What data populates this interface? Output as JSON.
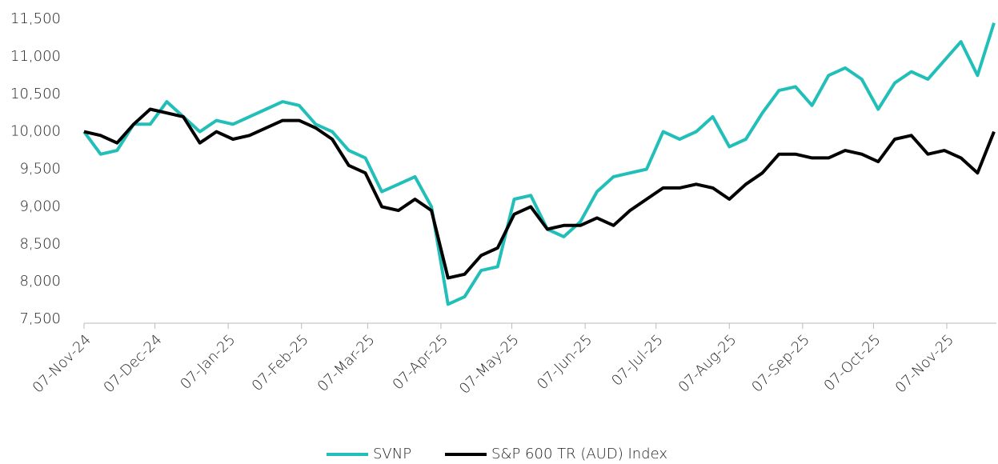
{
  "chart_data": {
    "type": "line",
    "x": [
      "2024-11-07",
      "2024-11-14",
      "2024-11-21",
      "2024-11-28",
      "2024-12-05",
      "2024-12-12",
      "2024-12-19",
      "2024-12-26",
      "2025-01-02",
      "2025-01-09",
      "2025-01-16",
      "2025-01-23",
      "2025-01-30",
      "2025-02-06",
      "2025-02-13",
      "2025-02-20",
      "2025-02-27",
      "2025-03-06",
      "2025-03-13",
      "2025-03-20",
      "2025-03-27",
      "2025-04-03",
      "2025-04-10",
      "2025-04-17",
      "2025-04-24",
      "2025-05-01",
      "2025-05-08",
      "2025-05-15",
      "2025-05-22",
      "2025-05-29",
      "2025-06-05",
      "2025-06-12",
      "2025-06-19",
      "2025-06-26",
      "2025-07-03",
      "2025-07-10",
      "2025-07-17",
      "2025-07-24",
      "2025-07-31",
      "2025-08-07",
      "2025-08-14",
      "2025-08-21",
      "2025-08-28",
      "2025-09-04",
      "2025-09-11",
      "2025-09-18",
      "2025-09-25",
      "2025-10-02",
      "2025-10-09",
      "2025-10-16",
      "2025-10-23",
      "2025-10-30",
      "2025-11-06",
      "2025-11-13",
      "2025-11-20",
      "2025-11-27"
    ],
    "series": [
      {
        "name": "SVNP",
        "color": "#22bfb8",
        "values": [
          10000,
          9700,
          9750,
          10100,
          10100,
          10400,
          10200,
          10000,
          10150,
          10100,
          10200,
          10300,
          10400,
          10350,
          10100,
          10000,
          9750,
          9650,
          9200,
          9300,
          9400,
          9000,
          7700,
          7800,
          8150,
          8200,
          9100,
          9150,
          8700,
          8600,
          8800,
          9200,
          9400,
          9450,
          9500,
          10000,
          9900,
          10000,
          10200,
          9800,
          9900,
          10250,
          10550,
          10600,
          10350,
          10750,
          10850,
          10700,
          10300,
          10650,
          10800,
          10700,
          10950,
          11200,
          10750,
          11450
        ]
      },
      {
        "name": "S&P 600 TR (AUD) Index",
        "color": "#000000",
        "values": [
          10000,
          9950,
          9850,
          10100,
          10300,
          10250,
          10200,
          9850,
          10000,
          9900,
          9950,
          10050,
          10150,
          10150,
          10050,
          9900,
          9550,
          9450,
          9000,
          8950,
          9100,
          8950,
          8050,
          8100,
          8350,
          8450,
          8900,
          9000,
          8700,
          8750,
          8750,
          8850,
          8750,
          8950,
          9100,
          9250,
          9250,
          9300,
          9250,
          9100,
          9300,
          9450,
          9700,
          9700,
          9650,
          9650,
          9750,
          9700,
          9600,
          9900,
          9950,
          9700,
          9750,
          9650,
          9450,
          10000
        ]
      }
    ],
    "xlim": [
      "2024-11-07",
      "2025-11-28"
    ],
    "xticks": [
      {
        "value": "2024-11-07",
        "label": "07-Nov-24"
      },
      {
        "value": "2024-12-07",
        "label": "07-Dec-24"
      },
      {
        "value": "2025-01-07",
        "label": "07-Jan-25"
      },
      {
        "value": "2025-02-07",
        "label": "07-Feb-25"
      },
      {
        "value": "2025-03-07",
        "label": "07-Mar-25"
      },
      {
        "value": "2025-04-07",
        "label": "07-Apr-25"
      },
      {
        "value": "2025-05-07",
        "label": "07-May-25"
      },
      {
        "value": "2025-06-07",
        "label": "07-Jun-25"
      },
      {
        "value": "2025-07-07",
        "label": "07-Jul-25"
      },
      {
        "value": "2025-08-07",
        "label": "07-Aug-25"
      },
      {
        "value": "2025-09-07",
        "label": "07-Sep-25"
      },
      {
        "value": "2025-10-07",
        "label": "07-Oct-25"
      },
      {
        "value": "2025-11-07",
        "label": "07-Nov-25"
      }
    ],
    "ylim": [
      7500,
      11500
    ],
    "yticks": [
      {
        "value": 7500,
        "label": "7,500"
      },
      {
        "value": 8000,
        "label": "8,000"
      },
      {
        "value": 8500,
        "label": "8,500"
      },
      {
        "value": 9000,
        "label": "9,000"
      },
      {
        "value": 9500,
        "label": "9,500"
      },
      {
        "value": 10000,
        "label": "10,000"
      },
      {
        "value": 10500,
        "label": "10,500"
      },
      {
        "value": 11000,
        "label": "11,000"
      },
      {
        "value": 11500,
        "label": "11,500"
      }
    ],
    "grid": false,
    "legend": "bottom"
  }
}
